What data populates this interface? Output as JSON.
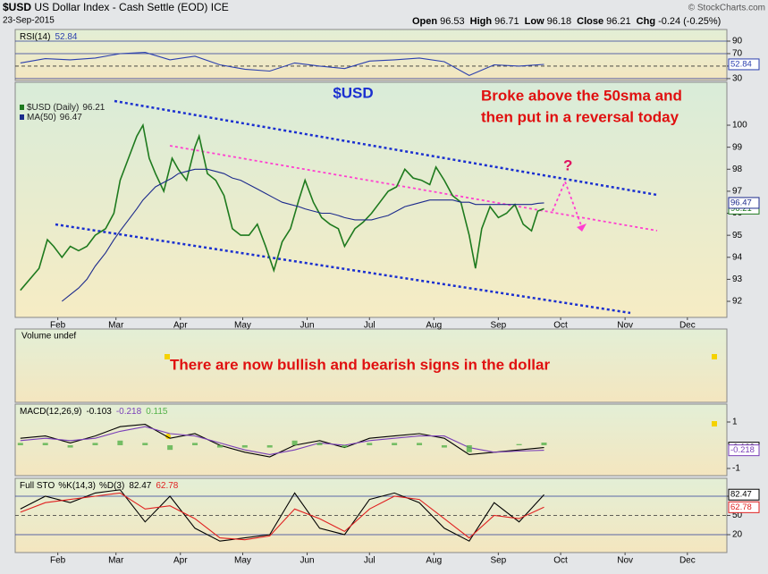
{
  "header": {
    "symbol": "$USD",
    "name": "US Dollar Index - Cash Settle (EOD) ICE",
    "date": "23-Sep-2015",
    "quote": [
      {
        "label": "Open",
        "value": 96.53
      },
      {
        "label": "High",
        "value": 96.71
      },
      {
        "label": "Low",
        "value": 96.18
      },
      {
        "label": "Close",
        "value": 96.21
      },
      {
        "label": "Chg",
        "value": -0.24
      }
    ],
    "change_pct": "(-0.25%)",
    "credit": "© StockCharts.com"
  },
  "chart_data": [
    {
      "type": "line",
      "title": "RSI(14)",
      "xlim": [
        11.5,
        354
      ],
      "ylim": [
        27,
        108.6
      ],
      "yticks": [
        30,
        50,
        70,
        90
      ],
      "grid": true,
      "x": [
        14,
        26,
        38,
        50,
        62,
        74,
        86,
        98,
        110,
        122,
        134,
        146,
        158,
        170,
        182,
        194,
        206,
        218,
        230,
        242,
        254,
        266
      ],
      "series": [
        {
          "name": "RSI(14)",
          "color": "#2b3fae",
          "last": 52.84,
          "values": [
            55,
            62,
            60,
            63,
            70,
            72,
            60,
            66,
            52,
            45,
            42,
            55,
            50,
            46,
            58,
            60,
            63,
            57,
            35,
            52,
            50,
            52.84
          ]
        }
      ]
    },
    {
      "type": "line",
      "title": "$USD",
      "xlim": [
        11.5,
        354
      ],
      "ylim": [
        91.27,
        101.95
      ],
      "yticks": [
        92,
        93,
        94,
        95,
        96,
        97,
        98,
        99,
        100
      ],
      "xticks": [
        {
          "value": 32,
          "label": "Feb"
        },
        {
          "value": 60,
          "label": "Mar"
        },
        {
          "value": 91,
          "label": "Apr"
        },
        {
          "value": 121,
          "label": "May"
        },
        {
          "value": 152,
          "label": "Jun"
        },
        {
          "value": 182,
          "label": "Jul"
        },
        {
          "value": 213,
          "label": "Aug"
        },
        {
          "value": 244,
          "label": "Sep"
        },
        {
          "value": 274,
          "label": "Oct"
        },
        {
          "value": 305,
          "label": "Nov"
        },
        {
          "value": 335,
          "label": "Dec"
        }
      ],
      "annotations": [
        "Broke above the 50sma and",
        "then put in a reversal today",
        "?"
      ],
      "x": [
        14,
        23,
        27,
        30,
        34,
        38,
        42,
        46,
        50,
        55,
        59,
        62,
        66,
        70,
        73,
        76,
        79,
        83,
        87,
        90,
        94,
        98,
        100,
        104,
        108,
        112,
        116,
        120,
        124,
        128,
        132,
        136,
        140,
        144,
        148,
        151,
        155,
        159,
        163,
        167,
        170,
        175,
        179,
        183,
        187,
        191,
        195,
        199,
        203,
        207,
        211,
        214,
        218,
        222,
        226,
        230,
        233,
        236,
        240,
        244,
        248,
        252,
        256,
        260,
        263,
        266
      ],
      "series": [
        {
          "name": "$USD (Daily)",
          "color": "#1e7a1e",
          "last": 96.21,
          "values": [
            92.5,
            93.5,
            94.8,
            94.5,
            94.0,
            94.5,
            94.3,
            94.5,
            95.0,
            95.3,
            96.0,
            97.5,
            98.5,
            99.5,
            100.0,
            98.5,
            97.8,
            97.0,
            98.5,
            98.0,
            97.5,
            99.0,
            99.5,
            97.8,
            97.5,
            96.8,
            95.3,
            95.0,
            95.0,
            95.5,
            94.5,
            93.4,
            94.7,
            95.3,
            96.6,
            97.5,
            96.5,
            95.8,
            95.5,
            95.3,
            94.5,
            95.3,
            95.6,
            96.0,
            96.5,
            97.0,
            97.2,
            98.0,
            97.6,
            97.5,
            97.3,
            98.1,
            97.5,
            96.8,
            96.5,
            95.0,
            93.5,
            95.3,
            96.3,
            95.8,
            96.0,
            96.4,
            95.5,
            95.2,
            96.1,
            96.21
          ]
        },
        {
          "name": "MA(50)",
          "color": "#1c2a8c",
          "last": 96.47,
          "values": [
            null,
            null,
            null,
            null,
            92.0,
            92.3,
            92.6,
            93.0,
            93.6,
            94.2,
            94.8,
            95.2,
            95.7,
            96.2,
            96.6,
            96.9,
            97.2,
            97.4,
            97.6,
            97.8,
            97.9,
            98.0,
            98.0,
            98.0,
            97.9,
            97.8,
            97.6,
            97.5,
            97.3,
            97.1,
            96.9,
            96.7,
            96.5,
            96.4,
            96.3,
            96.2,
            96.1,
            96.0,
            96.0,
            95.9,
            95.8,
            95.7,
            95.7,
            95.7,
            95.8,
            95.9,
            96.1,
            96.3,
            96.4,
            96.5,
            96.6,
            96.6,
            96.6,
            96.6,
            96.5,
            96.5,
            96.4,
            96.4,
            96.4,
            96.4,
            96.4,
            96.4,
            96.4,
            96.4,
            96.45,
            96.47
          ]
        }
      ]
    },
    {
      "type": "line",
      "title": "Volume undef",
      "annotations": [
        "There are now bullish and bearish signs in the dollar"
      ]
    },
    {
      "type": "line",
      "title": "MACD(12,26,9)",
      "xlim": [
        11.5,
        354
      ],
      "ylim": [
        -1.31,
        1.77
      ],
      "yticks": [
        -1,
        1
      ],
      "x": [
        14,
        26,
        38,
        50,
        62,
        74,
        86,
        98,
        110,
        122,
        134,
        146,
        158,
        170,
        182,
        194,
        206,
        218,
        230,
        242,
        254,
        266
      ],
      "series": [
        {
          "name": "MACD",
          "color": "#000000",
          "last": -0.103,
          "values": [
            0.3,
            0.4,
            0.1,
            0.4,
            0.8,
            0.9,
            0.3,
            0.5,
            0.0,
            -0.3,
            -0.5,
            0.0,
            0.2,
            -0.1,
            0.3,
            0.4,
            0.5,
            0.3,
            -0.4,
            -0.3,
            -0.2,
            -0.103
          ]
        },
        {
          "name": "Signal",
          "color": "#7a3fb8",
          "last": -0.218,
          "values": [
            0.2,
            0.3,
            0.2,
            0.3,
            0.6,
            0.8,
            0.5,
            0.4,
            0.1,
            -0.2,
            -0.4,
            -0.2,
            0.1,
            0.0,
            0.2,
            0.3,
            0.4,
            0.4,
            -0.1,
            -0.3,
            -0.25,
            -0.218
          ]
        },
        {
          "name": "Histogram",
          "color": "#55b24a",
          "last": 0.115,
          "bars": true,
          "values": [
            0.1,
            0.1,
            -0.1,
            0.1,
            0.2,
            0.1,
            -0.2,
            0.1,
            -0.1,
            -0.1,
            -0.1,
            0.2,
            0.1,
            -0.1,
            0.1,
            0.1,
            0.1,
            -0.1,
            -0.3,
            0.0,
            0.05,
            0.115
          ]
        }
      ]
    },
    {
      "type": "line",
      "title": "Full STO",
      "xlim": [
        11.5,
        354
      ],
      "ylim": [
        -7.9,
        107.9
      ],
      "yticks": [
        20,
        50,
        80
      ],
      "grid": true,
      "xticks": [
        {
          "value": 32,
          "label": "Feb"
        },
        {
          "value": 60,
          "label": "Mar"
        },
        {
          "value": 91,
          "label": "Apr"
        },
        {
          "value": 121,
          "label": "May"
        },
        {
          "value": 152,
          "label": "Jun"
        },
        {
          "value": 182,
          "label": "Jul"
        },
        {
          "value": 213,
          "label": "Aug"
        },
        {
          "value": 244,
          "label": "Sep"
        },
        {
          "value": 274,
          "label": "Oct"
        },
        {
          "value": 305,
          "label": "Nov"
        },
        {
          "value": 335,
          "label": "Dec"
        }
      ],
      "x": [
        14,
        26,
        38,
        50,
        62,
        74,
        86,
        98,
        110,
        122,
        134,
        146,
        158,
        170,
        182,
        194,
        206,
        218,
        230,
        242,
        254,
        266
      ],
      "series": [
        {
          "name": "%K(14,3)",
          "color": "#000000",
          "last": 82.47,
          "values": [
            60,
            80,
            70,
            85,
            90,
            40,
            80,
            30,
            10,
            15,
            20,
            85,
            30,
            20,
            75,
            85,
            70,
            30,
            10,
            70,
            40,
            82.47
          ]
        },
        {
          "name": "%D(3)",
          "color": "#e02020",
          "last": 62.78,
          "values": [
            55,
            70,
            75,
            80,
            85,
            60,
            65,
            45,
            15,
            12,
            18,
            60,
            45,
            25,
            60,
            80,
            75,
            45,
            15,
            50,
            45,
            62.78
          ]
        }
      ]
    }
  ]
}
